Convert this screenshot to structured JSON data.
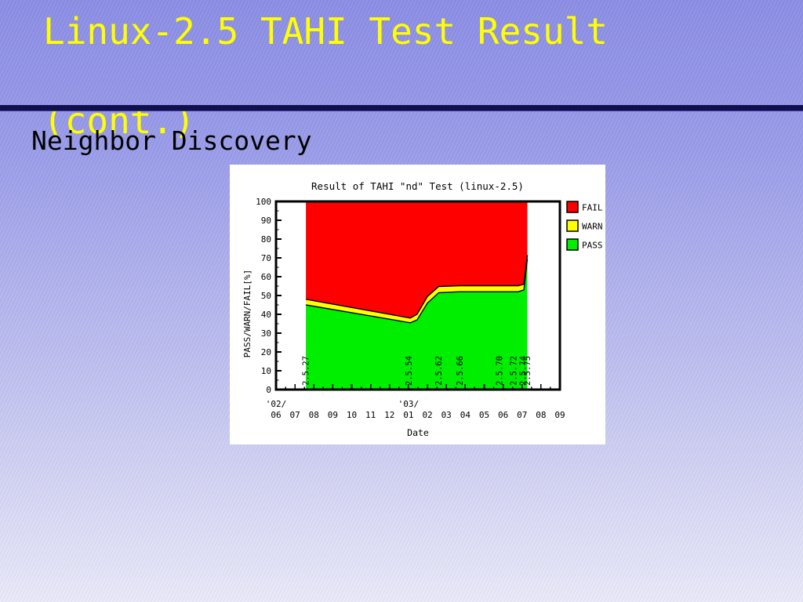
{
  "slide": {
    "title_line1": "Linux-2.5 TAHI Test Result",
    "title_line2": "(cont.)",
    "subtitle": "Neighbor Discovery",
    "title_color": "#ffff00",
    "rule_color": "#10104f",
    "bg_top": "#8b8de5",
    "bg_bottom": "#eaeaf9"
  },
  "chart_data": {
    "type": "area",
    "title": "Result of TAHI \"nd\" Test (linux-2.5)",
    "xlabel": "Date",
    "ylabel": "PASS/WARN/FAIL[%]",
    "ylim": [
      0,
      100
    ],
    "grid": false,
    "legend_position": "top-right-outside",
    "y_ticks": [
      0,
      10,
      20,
      30,
      40,
      50,
      60,
      70,
      80,
      90,
      100
    ],
    "x_months": [
      "06",
      "07",
      "08",
      "09",
      "10",
      "11",
      "12",
      "01",
      "02",
      "03",
      "04",
      "05",
      "06",
      "07",
      "08",
      "09"
    ],
    "x_year_marks": [
      {
        "index": 0,
        "label": "'02/"
      },
      {
        "index": 7,
        "label": "'03/"
      }
    ],
    "colors": {
      "pass": "#00ee00",
      "warn": "#ffff00",
      "fail": "#ff0000"
    },
    "legend": [
      {
        "label": "FAIL",
        "color": "#ff0000"
      },
      {
        "label": "WARN",
        "color": "#ffff00"
      },
      {
        "label": "PASS",
        "color": "#00ee00"
      }
    ],
    "series_note": "stacked percentages; x in months from '02/06 tick; warn_top = PASS+WARN cumulative; FAIL fills to 100",
    "series_points": [
      {
        "x": 1.58,
        "pass": 45.0,
        "warn_top": 48.0
      },
      {
        "x": 7.1,
        "pass": 35.5,
        "warn_top": 38.0
      },
      {
        "x": 7.45,
        "pass": 37.0,
        "warn_top": 40.0
      },
      {
        "x": 8.0,
        "pass": 46.0,
        "warn_top": 49.5
      },
      {
        "x": 8.6,
        "pass": 51.5,
        "warn_top": 54.8
      },
      {
        "x": 9.7,
        "pass": 52.0,
        "warn_top": 55.2
      },
      {
        "x": 12.8,
        "pass": 52.0,
        "warn_top": 55.2
      },
      {
        "x": 13.1,
        "pass": 53.0,
        "warn_top": 56.0
      },
      {
        "x": 13.28,
        "pass": 69.5,
        "warn_top": 71.5
      }
    ],
    "kernel_labels": [
      {
        "x": 1.58,
        "label": "2.5.27"
      },
      {
        "x": 7.02,
        "label": "2.5.54"
      },
      {
        "x": 8.6,
        "label": "2.5.62"
      },
      {
        "x": 9.72,
        "label": "2.5.66"
      },
      {
        "x": 11.8,
        "label": "2.5.70"
      },
      {
        "x": 12.56,
        "label": "2.5.72"
      },
      {
        "x": 13.05,
        "label": "2.5.74"
      },
      {
        "x": 13.28,
        "label": "2.5.75"
      }
    ]
  }
}
